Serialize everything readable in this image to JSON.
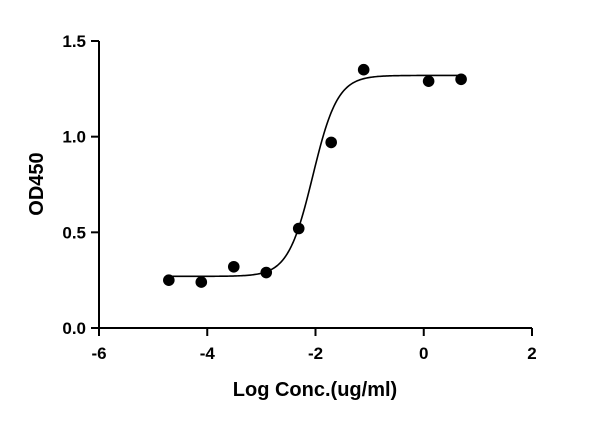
{
  "chart_data": {
    "type": "scatter",
    "title": "",
    "xlabel": "Log Conc.(ug/ml)",
    "ylabel": "OD450",
    "xlim": [
      -6,
      2
    ],
    "ylim": [
      0,
      1.5
    ],
    "x_ticks": [
      -6,
      -4,
      -2,
      0,
      2
    ],
    "x_tick_labels": [
      "-6",
      "-4",
      "-2",
      "0",
      "2"
    ],
    "y_ticks": [
      0,
      0.5,
      1.0,
      1.5
    ],
    "y_tick_labels": [
      "0.0",
      "0.5",
      "1.0",
      "1.5"
    ],
    "grid": false,
    "legend": "none",
    "series": [
      {
        "points": [
          {
            "x": -4.71,
            "y": 0.25
          },
          {
            "x": -4.11,
            "y": 0.24
          },
          {
            "x": -3.51,
            "y": 0.32
          },
          {
            "x": -2.91,
            "y": 0.29
          },
          {
            "x": -2.31,
            "y": 0.52
          },
          {
            "x": -1.71,
            "y": 0.97
          },
          {
            "x": -1.11,
            "y": 1.35
          },
          {
            "x": 0.09,
            "y": 1.29
          },
          {
            "x": 0.69,
            "y": 1.3
          }
        ]
      }
    ],
    "fit_curve": {
      "model": "4PL",
      "bottom": 0.27,
      "top": 1.32,
      "log_ec50": -2.05,
      "hill_slope": 1.9,
      "x_range": [
        -4.71,
        0.69
      ]
    },
    "colors": {
      "axis": "#000000",
      "marker": "#000000",
      "curve": "#000000"
    }
  }
}
